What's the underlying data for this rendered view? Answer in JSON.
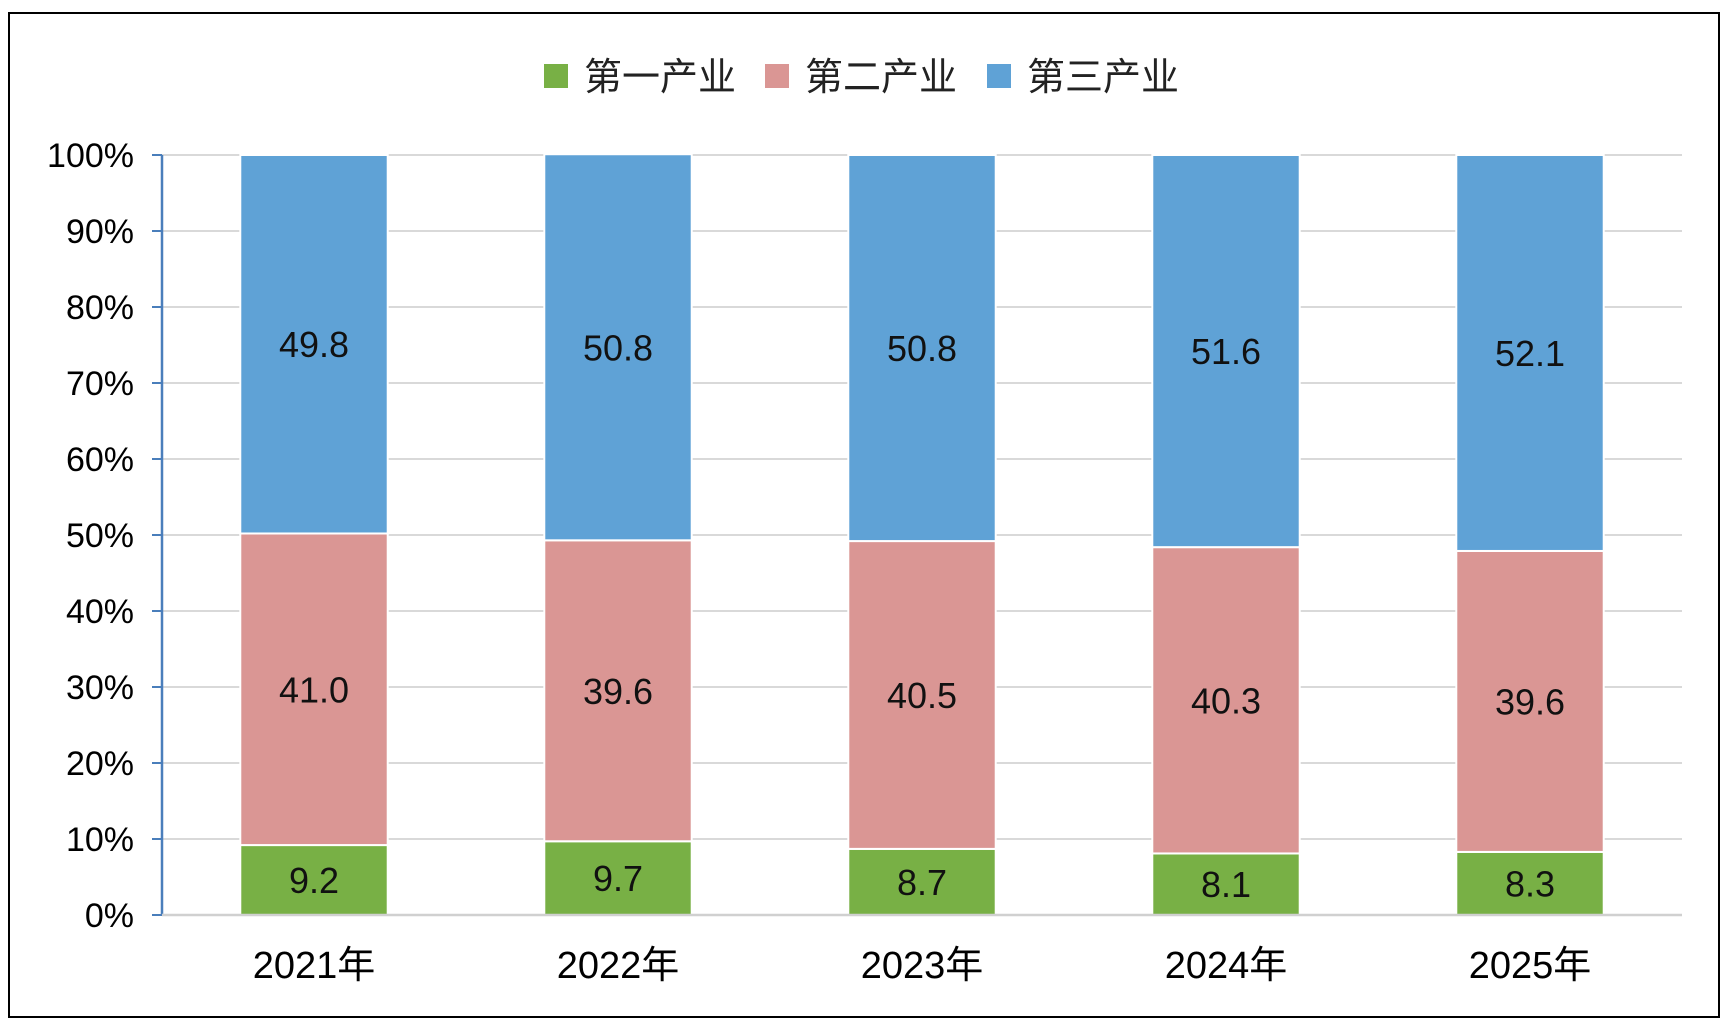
{
  "chart_data": {
    "type": "bar",
    "stacked": "percent",
    "categories": [
      "2021年",
      "2022年",
      "2023年",
      "2024年",
      "2025年"
    ],
    "series": [
      {
        "name": "第一产业",
        "values": [
          9.2,
          9.7,
          8.7,
          8.1,
          8.3
        ],
        "color": "#78b045"
      },
      {
        "name": "第二产业",
        "values": [
          41.0,
          39.6,
          40.5,
          40.3,
          39.6
        ],
        "color": "#da9694"
      },
      {
        "name": "第三产业",
        "values": [
          49.8,
          50.8,
          50.8,
          51.6,
          52.1
        ],
        "color": "#5fa2d6"
      }
    ],
    "data_labels": [
      [
        "9.2",
        "9.7",
        "8.7",
        "8.1",
        "8.3"
      ],
      [
        "41.0",
        "39.6",
        "40.5",
        "40.3",
        "39.6"
      ],
      [
        "49.8",
        "50.8",
        "50.8",
        "51.6",
        "52.1"
      ]
    ],
    "yticks": [
      "0%",
      "10%",
      "20%",
      "30%",
      "40%",
      "50%",
      "60%",
      "70%",
      "80%",
      "90%",
      "100%"
    ],
    "ylim": [
      0,
      100
    ],
    "grid": true,
    "legend_position": "top-center",
    "title": "",
    "xlabel": "",
    "ylabel": ""
  }
}
